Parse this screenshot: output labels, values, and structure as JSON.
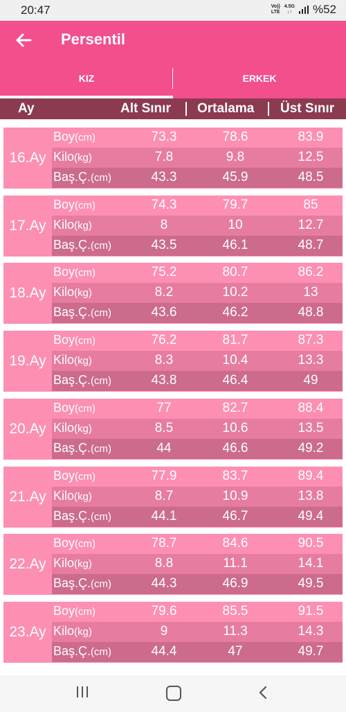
{
  "status": {
    "time": "20:47",
    "net_top": "Vo))",
    "net_bottom": "LTE",
    "net_type": "4.5G",
    "battery": "%52"
  },
  "appbar": {
    "title": "Persentil",
    "back_icon": "arrow-left-icon"
  },
  "tabs": [
    {
      "label": "KIZ",
      "selected": true
    },
    {
      "label": "ERKEK",
      "selected": false
    }
  ],
  "columns": {
    "ay": "Ay",
    "alt": "Alt Sınır",
    "ort": "Ortalama",
    "ust": "Üst Sınır"
  },
  "row_labels": {
    "boy": "Boy",
    "boy_unit": "(cm)",
    "kilo": "Kilo",
    "kilo_unit": "(kg)",
    "bas": "Baş.Ç.",
    "bas_unit": "(cm)"
  },
  "months": [
    {
      "label": "16.Ay",
      "boy": [
        "73.3",
        "78.6",
        "83.9"
      ],
      "kilo": [
        "7.8",
        "9.8",
        "12.5"
      ],
      "bas": [
        "43.3",
        "45.9",
        "48.5"
      ]
    },
    {
      "label": "17.Ay",
      "boy": [
        "74.3",
        "79.7",
        "85"
      ],
      "kilo": [
        "8",
        "10",
        "12.7"
      ],
      "bas": [
        "43.5",
        "46.1",
        "48.7"
      ]
    },
    {
      "label": "18.Ay",
      "boy": [
        "75.2",
        "80.7",
        "86.2"
      ],
      "kilo": [
        "8.2",
        "10.2",
        "13"
      ],
      "bas": [
        "43.6",
        "46.2",
        "48.8"
      ]
    },
    {
      "label": "19.Ay",
      "boy": [
        "76.2",
        "81.7",
        "87.3"
      ],
      "kilo": [
        "8.3",
        "10.4",
        "13.3"
      ],
      "bas": [
        "43.8",
        "46.4",
        "49"
      ]
    },
    {
      "label": "20.Ay",
      "boy": [
        "77",
        "82.7",
        "88.4"
      ],
      "kilo": [
        "8.5",
        "10.6",
        "13.5"
      ],
      "bas": [
        "44",
        "46.6",
        "49.2"
      ]
    },
    {
      "label": "21.Ay",
      "boy": [
        "77.9",
        "83.7",
        "89.4"
      ],
      "kilo": [
        "8.7",
        "10.9",
        "13.8"
      ],
      "bas": [
        "44.1",
        "46.7",
        "49.4"
      ]
    },
    {
      "label": "22.Ay",
      "boy": [
        "78.7",
        "84.6",
        "90.5"
      ],
      "kilo": [
        "8.8",
        "11.1",
        "14.1"
      ],
      "bas": [
        "44.3",
        "46.9",
        "49.5"
      ]
    },
    {
      "label": "23.Ay",
      "boy": [
        "79.6",
        "85.5",
        "91.5"
      ],
      "kilo": [
        "9",
        "11.3",
        "14.3"
      ],
      "bas": [
        "44.4",
        "47",
        "49.7"
      ]
    }
  ],
  "colors": {
    "primary": "#f24f8c",
    "header_bar": "#8c3a50",
    "row_light": "#fd8fb2",
    "row_mid": "#e67ca0",
    "row_dark": "#cc6b8c"
  },
  "nav": {
    "recent_icon": "recent-apps-icon",
    "home_icon": "home-icon",
    "back_icon": "nav-back-icon"
  }
}
